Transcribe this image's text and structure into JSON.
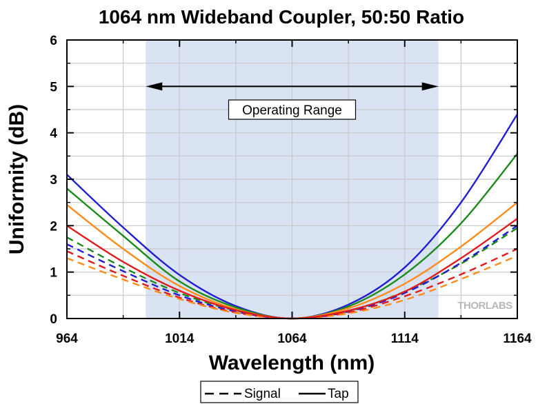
{
  "chart_data": {
    "type": "line",
    "title": "1064 nm Wideband Coupler, 50:50 Ratio",
    "xlabel": "Wavelength (nm)",
    "ylabel": "Uniformity (dB)",
    "xlim": [
      964,
      1164
    ],
    "ylim": [
      0,
      6
    ],
    "xticks": [
      "964",
      "1014",
      "1064",
      "1114",
      "1164"
    ],
    "yticks": [
      "0",
      "1",
      "2",
      "3",
      "4",
      "5",
      "6"
    ],
    "grid": true,
    "legend_position": "bottom-center",
    "operating_range": {
      "x": [
        999,
        1129
      ],
      "label": "Operating Range",
      "color": "#dae3f3"
    },
    "legend": [
      {
        "label": "Signal",
        "style": "dashed"
      },
      {
        "label": "Tap",
        "style": "solid"
      }
    ],
    "series": [
      {
        "style": "solid",
        "color": "#1f1fd1",
        "x": [
          964,
          989,
          1014,
          1039,
          1064,
          1089,
          1114,
          1139,
          1164
        ],
        "values": [
          3.1,
          1.96,
          0.94,
          0.27,
          0.0,
          0.3,
          1.1,
          2.5,
          4.4
        ]
      },
      {
        "style": "solid",
        "color": "#1a8a1a",
        "x": [
          964,
          989,
          1014,
          1039,
          1064,
          1089,
          1114,
          1139,
          1164
        ],
        "values": [
          2.8,
          1.78,
          0.8,
          0.24,
          0.0,
          0.26,
          0.95,
          2.05,
          3.55
        ]
      },
      {
        "style": "solid",
        "color": "#ff8c1a",
        "x": [
          964,
          989,
          1014,
          1039,
          1064,
          1089,
          1114,
          1139,
          1164
        ],
        "values": [
          2.45,
          1.5,
          0.7,
          0.2,
          0.0,
          0.22,
          0.75,
          1.55,
          2.5
        ]
      },
      {
        "style": "solid",
        "color": "#e01b1b",
        "x": [
          964,
          989,
          1014,
          1039,
          1064,
          1089,
          1114,
          1139,
          1164
        ],
        "values": [
          2.0,
          1.22,
          0.6,
          0.18,
          0.0,
          0.17,
          0.58,
          1.3,
          2.15
        ]
      },
      {
        "style": "dashed",
        "color": "#1a8a1a",
        "x": [
          964,
          989,
          1014,
          1039,
          1064,
          1089,
          1114,
          1139,
          1164
        ],
        "values": [
          1.75,
          1.1,
          0.55,
          0.17,
          0.0,
          0.16,
          0.58,
          1.18,
          1.95
        ]
      },
      {
        "style": "dashed",
        "color": "#1f1fd1",
        "x": [
          964,
          989,
          1014,
          1039,
          1064,
          1089,
          1114,
          1139,
          1164
        ],
        "values": [
          1.6,
          1.02,
          0.5,
          0.15,
          0.0,
          0.15,
          0.55,
          1.2,
          2.0
        ]
      },
      {
        "style": "dashed",
        "color": "#e01b1b",
        "x": [
          964,
          989,
          1014,
          1039,
          1064,
          1089,
          1114,
          1139,
          1164
        ],
        "values": [
          1.45,
          0.92,
          0.45,
          0.13,
          0.0,
          0.13,
          0.48,
          0.95,
          1.5
        ]
      },
      {
        "style": "dashed",
        "color": "#ff8c1a",
        "x": [
          964,
          989,
          1014,
          1039,
          1064,
          1089,
          1114,
          1139,
          1164
        ],
        "values": [
          1.3,
          0.84,
          0.42,
          0.12,
          0.0,
          0.11,
          0.4,
          0.85,
          1.35
        ]
      }
    ]
  },
  "watermark": "THORLABS"
}
